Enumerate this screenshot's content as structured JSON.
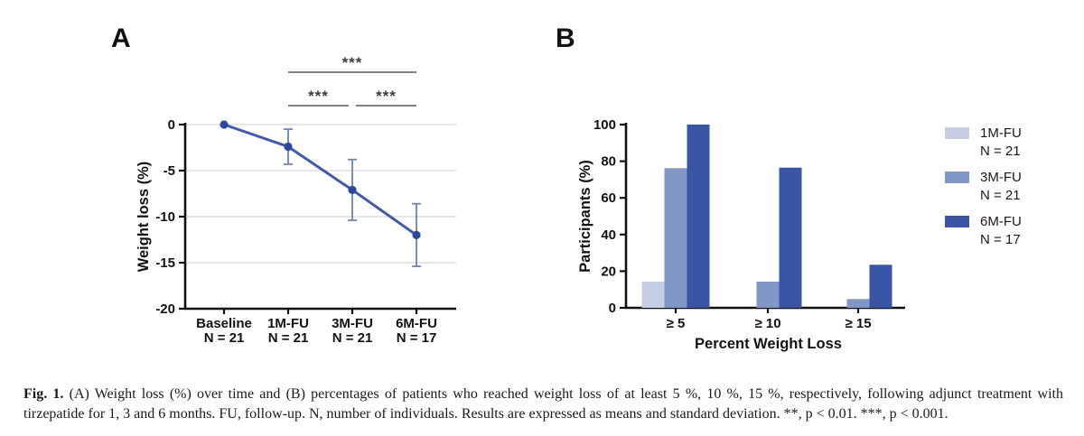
{
  "figure": {
    "panel_a_label": "A",
    "panel_b_label": "B",
    "caption_lead": "Fig. 1.",
    "caption_text": " (A) Weight loss (%) over time and (B) percentages of patients who reached weight loss of at least 5 %, 10 %, 15 %, respectively, following adjunct treatment with tirzepatide for 1, 3 and 6 months. FU, follow-up. N, number of individuals. Results are expressed as means and standard deviation. **, p < 0.01. ***, p < 0.001."
  },
  "colors": {
    "axis": "#111111",
    "grid": "#d8d8d8",
    "text": "#111111",
    "line": "#3e5cab",
    "marker": "#2c489c",
    "error_bar": "#7288bd",
    "significance_line": "#6f6f6f",
    "significance_star": "#3c3c3c"
  },
  "chart_data": [
    {
      "type": "line",
      "panel": "A",
      "ylabel": "Weight loss (%)",
      "x_categories": [
        "Baseline",
        "1M-FU",
        "3M-FU",
        "6M-FU"
      ],
      "x_sublabels": [
        "N = 21",
        "N = 21",
        "N = 21",
        "N = 17"
      ],
      "means": [
        0,
        -2.4,
        -7.1,
        -12.0
      ],
      "sd": [
        0,
        1.9,
        3.3,
        3.4
      ],
      "ylim": [
        -20,
        0
      ],
      "yticks": [
        0,
        -5,
        -10,
        -15,
        -20
      ],
      "gridlines": [
        0,
        -5,
        -10,
        -15
      ],
      "grid": true,
      "legend_position": "none",
      "significance": [
        {
          "x1": 1,
          "x2": 3,
          "row": 0,
          "label": "***"
        },
        {
          "x1": 1,
          "x2": 2,
          "row": 1,
          "label": "***"
        },
        {
          "x1": 2,
          "x2": 3,
          "row": 1,
          "label": "***"
        }
      ]
    },
    {
      "type": "bar",
      "panel": "B",
      "ylabel": "Participants (%)",
      "xlabel": "Percent Weight Loss",
      "categories": [
        "≥ 5",
        "≥ 10",
        "≥ 15"
      ],
      "series": [
        {
          "name": "1M-FU",
          "n_label": "N = 21",
          "values": [
            14.3,
            0,
            0
          ],
          "color": "#c6cee4"
        },
        {
          "name": "3M-FU",
          "n_label": "N = 21",
          "values": [
            76.2,
            14.3,
            4.8
          ],
          "color": "#8096c5"
        },
        {
          "name": "6M-FU",
          "n_label": "N = 17",
          "values": [
            100,
            76.5,
            23.5
          ],
          "color": "#3a55a4"
        }
      ],
      "ylim": [
        0,
        100
      ],
      "yticks": [
        0,
        20,
        40,
        60,
        80,
        100
      ],
      "grid": false,
      "legend_position": "right"
    }
  ]
}
